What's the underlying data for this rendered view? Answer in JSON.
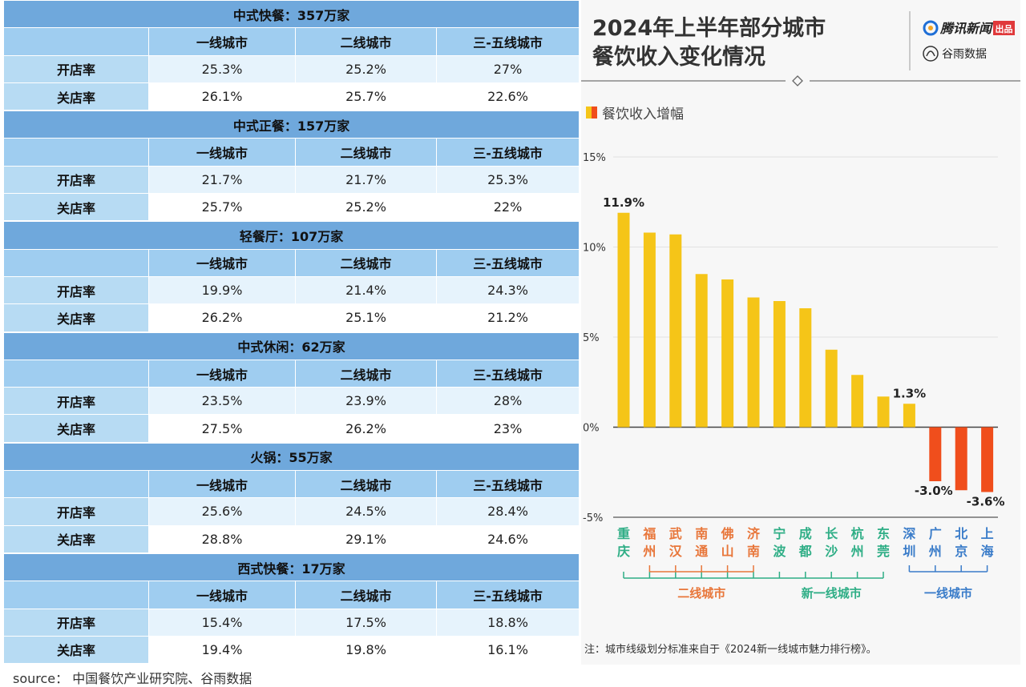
{
  "tables": [
    {
      "title": "中式快餐：357万家",
      "headers": [
        "一线城市",
        "二线城市",
        "三-五线城市"
      ],
      "rows": [
        {
          "label": "开店率",
          "values": [
            "25.3%",
            "25.2%",
            "27%"
          ]
        },
        {
          "label": "关店率",
          "values": [
            "26.1%",
            "25.7%",
            "22.6%"
          ]
        }
      ]
    },
    {
      "title": "中式正餐：157万家",
      "headers": [
        "一线城市",
        "二线城市",
        "三-五线城市"
      ],
      "rows": [
        {
          "label": "开店率",
          "values": [
            "21.7%",
            "21.7%",
            "25.3%"
          ]
        },
        {
          "label": "关店率",
          "values": [
            "25.7%",
            "25.2%",
            "22%"
          ]
        }
      ]
    },
    {
      "title": "轻餐厅：107万家",
      "headers": [
        "一线城市",
        "二线城市",
        "三-五线城市"
      ],
      "rows": [
        {
          "label": "开店率",
          "values": [
            "19.9%",
            "21.4%",
            "24.3%"
          ]
        },
        {
          "label": "关店率",
          "values": [
            "26.2%",
            "25.1%",
            "21.2%"
          ]
        }
      ]
    },
    {
      "title": "中式休闲：62万家",
      "headers": [
        "一线城市",
        "二线城市",
        "三-五线城市"
      ],
      "rows": [
        {
          "label": "开店率",
          "values": [
            "23.5%",
            "23.9%",
            "28%"
          ]
        },
        {
          "label": "关店率",
          "values": [
            "27.5%",
            "26.2%",
            "23%"
          ]
        }
      ]
    },
    {
      "title": "火锅：55万家",
      "headers": [
        "一线城市",
        "二线城市",
        "三-五线城市"
      ],
      "rows": [
        {
          "label": "开店率",
          "values": [
            "25.6%",
            "24.5%",
            "28.4%"
          ]
        },
        {
          "label": "关店率",
          "values": [
            "28.8%",
            "29.1%",
            "24.6%"
          ]
        }
      ]
    },
    {
      "title": "西式快餐：17万家",
      "headers": [
        "一线城市",
        "二线城市",
        "三-五线城市"
      ],
      "rows": [
        {
          "label": "开店率",
          "values": [
            "15.4%",
            "17.5%",
            "18.8%"
          ]
        },
        {
          "label": "关店率",
          "values": [
            "19.4%",
            "19.8%",
            "16.1%"
          ]
        }
      ]
    }
  ],
  "source": "source：  中国餐饮产业研究院、谷雨数据",
  "chart_data": {
    "type": "bar",
    "title_lines": [
      "2024年上半年部分城市",
      "餐饮收入变化情况"
    ],
    "logo_primary": "腾讯新闻",
    "logo_badge": "出品",
    "logo_secondary": "谷雨数据",
    "legend": "餐饮收入增幅",
    "categories": [
      "重庆",
      "福州",
      "武汉",
      "南通",
      "佛山",
      "济南",
      "宁波",
      "成都",
      "长沙",
      "杭州",
      "东莞",
      "深圳",
      "广州",
      "北京",
      "上海"
    ],
    "values": [
      11.9,
      10.8,
      10.7,
      8.5,
      8.2,
      7.2,
      7.0,
      6.6,
      4.3,
      2.9,
      1.7,
      1.3,
      -3.0,
      -3.5,
      -3.6
    ],
    "data_labels": {
      "0": "11.9%",
      "11": "1.3%",
      "12": "-3.0%",
      "14": "-3.6%"
    },
    "yticks": [
      "15%",
      "10%",
      "5%",
      "0%",
      "-5%"
    ],
    "ylim": [
      -5,
      15
    ],
    "groups": [
      {
        "label": "二线城市",
        "start": 1,
        "end": 5,
        "color": "#e8763a"
      },
      {
        "label": "新一线城市",
        "start": 0,
        "end": 10,
        "color": "#2fae86"
      },
      {
        "label": "一线城市",
        "start": 11,
        "end": 14,
        "color": "#3a7cc9"
      }
    ],
    "colors": {
      "positive": "#f5c518",
      "negative": "#f04e1c",
      "new_tier1": "#2fae86",
      "tier2": "#e8763a",
      "tier1": "#3a7cc9"
    },
    "note": "注：城市线级划分标准来自于《2024新一线城市魅力排行榜》。"
  }
}
